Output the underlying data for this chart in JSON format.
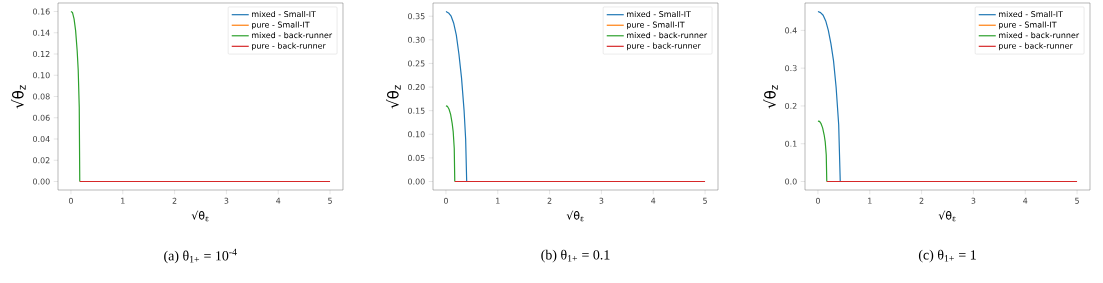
{
  "chart_data": [
    {
      "type": "line",
      "title": "(a) θ$_{1+}$ = 10$^{-4}$",
      "xlabel": "√θ$_{ε}$",
      "ylabel": "√θ$_{z}$",
      "legend": "top right",
      "xlim": [
        -0.25,
        5.25
      ],
      "ylim": [
        -0.008,
        0.168
      ],
      "xticks": [
        0,
        1,
        2,
        3,
        4,
        5
      ],
      "yticks": [
        {
          "value": 0,
          "label": "0.00"
        },
        {
          "value": 0.02,
          "label": "0.02"
        },
        {
          "value": 0.04,
          "label": "0.04"
        },
        {
          "value": 0.06,
          "label": "0.06"
        },
        {
          "value": 0.08,
          "label": "0.08"
        },
        {
          "value": 0.1,
          "label": "0.10"
        },
        {
          "value": 0.12,
          "label": "0.12"
        },
        {
          "value": 0.14,
          "label": "0.14"
        },
        {
          "value": 0.16,
          "label": "0.16"
        }
      ],
      "series": [
        {
          "name": "mixed - Small-IT",
          "color": "#1f77b4"
        },
        {
          "name": "pure - Small-IT",
          "color": "#ff7f0e"
        },
        {
          "name": "mixed - back-runner",
          "color": "#2ca02c",
          "x": [
            0,
            0.03,
            0.06,
            0.09,
            0.12,
            0.14,
            0.16,
            0.17
          ],
          "values": [
            0.16,
            0.159,
            0.153,
            0.142,
            0.123,
            0.105,
            0.07,
            0
          ]
        },
        {
          "name": "pure - back-runner",
          "color": "#d62728",
          "x": [
            0.17,
            5
          ],
          "values": [
            0,
            0
          ]
        }
      ]
    },
    {
      "type": "line",
      "title": "(b) θ$_{1+}$ = 0.1",
      "xlabel": "√θ$_{ε}$",
      "ylabel": "√θ$_{z}$",
      "legend": "top right",
      "xlim": [
        -0.25,
        5.25
      ],
      "ylim": [
        -0.018,
        0.378
      ],
      "xticks": [
        0,
        1,
        2,
        3,
        4,
        5
      ],
      "yticks": [
        {
          "value": 0,
          "label": "0.00"
        },
        {
          "value": 0.05,
          "label": "0.05"
        },
        {
          "value": 0.1,
          "label": "0.10"
        },
        {
          "value": 0.15,
          "label": "0.15"
        },
        {
          "value": 0.2,
          "label": "0.20"
        },
        {
          "value": 0.25,
          "label": "0.25"
        },
        {
          "value": 0.3,
          "label": "0.30"
        },
        {
          "value": 0.35,
          "label": "0.35"
        }
      ],
      "series": [
        {
          "name": "mixed - Small-IT",
          "color": "#1f77b4",
          "x": [
            0,
            0.05,
            0.1,
            0.15,
            0.2,
            0.25,
            0.3,
            0.35,
            0.38,
            0.4
          ],
          "values": [
            0.36,
            0.357,
            0.35,
            0.335,
            0.31,
            0.27,
            0.22,
            0.15,
            0.09,
            0
          ]
        },
        {
          "name": "pure - Small-IT",
          "color": "#ff7f0e"
        },
        {
          "name": "mixed - back-runner",
          "color": "#2ca02c",
          "x": [
            0,
            0.03,
            0.06,
            0.09,
            0.12,
            0.14,
            0.16,
            0.17
          ],
          "values": [
            0.16,
            0.159,
            0.153,
            0.142,
            0.123,
            0.105,
            0.07,
            0
          ]
        },
        {
          "name": "pure - back-runner",
          "color": "#d62728",
          "x": [
            0.17,
            5
          ],
          "values": [
            0,
            0
          ]
        }
      ]
    },
    {
      "type": "line",
      "title": "(c) θ$_{1+}$ = 1",
      "xlabel": "√θ$_{ε}$",
      "ylabel": "√θ$_{z}$",
      "legend": "top right",
      "xlim": [
        -0.25,
        5.25
      ],
      "ylim": [
        -0.0225,
        0.4725
      ],
      "xticks": [
        0,
        1,
        2,
        3,
        4,
        5
      ],
      "yticks": [
        {
          "value": 0,
          "label": "0.0"
        },
        {
          "value": 0.1,
          "label": "0.1"
        },
        {
          "value": 0.2,
          "label": "0.2"
        },
        {
          "value": 0.3,
          "label": "0.3"
        },
        {
          "value": 0.4,
          "label": "0.4"
        }
      ],
      "series": [
        {
          "name": "mixed - Small-IT",
          "color": "#1f77b4",
          "x": [
            0,
            0.05,
            0.1,
            0.15,
            0.2,
            0.25,
            0.3,
            0.35,
            0.4,
            0.43
          ],
          "values": [
            0.45,
            0.447,
            0.44,
            0.425,
            0.4,
            0.365,
            0.32,
            0.25,
            0.15,
            0
          ]
        },
        {
          "name": "pure - Small-IT",
          "color": "#ff7f0e"
        },
        {
          "name": "mixed - back-runner",
          "color": "#2ca02c",
          "x": [
            0,
            0.03,
            0.06,
            0.09,
            0.12,
            0.14,
            0.16,
            0.17
          ],
          "values": [
            0.16,
            0.159,
            0.153,
            0.142,
            0.123,
            0.105,
            0.07,
            0
          ]
        },
        {
          "name": "pure - back-runner",
          "color": "#d62728",
          "x": [
            0.17,
            5
          ],
          "values": [
            0,
            0
          ]
        }
      ]
    }
  ]
}
